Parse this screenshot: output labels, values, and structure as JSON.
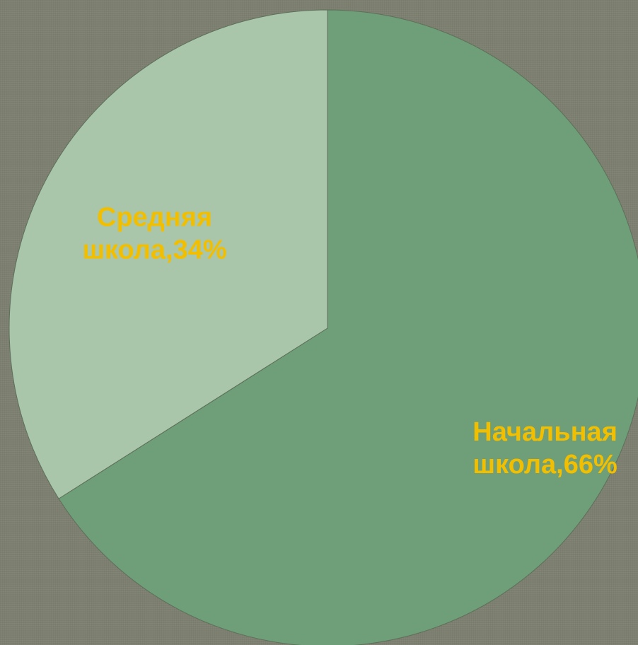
{
  "chart_data": {
    "type": "pie",
    "categories": [
      "Начальная школа",
      "Средняя школа"
    ],
    "values": [
      66,
      34
    ],
    "data_labels": [
      [
        "Начальная",
        "школа,66%"
      ],
      [
        "Средняя",
        "школа,34%"
      ]
    ],
    "slice_colors": [
      "#6e9f78",
      "#a9c6ab"
    ],
    "label_color": "#f2be00",
    "start_angle_deg": 0,
    "direction": "clockwise",
    "title": "",
    "legend": "none"
  }
}
